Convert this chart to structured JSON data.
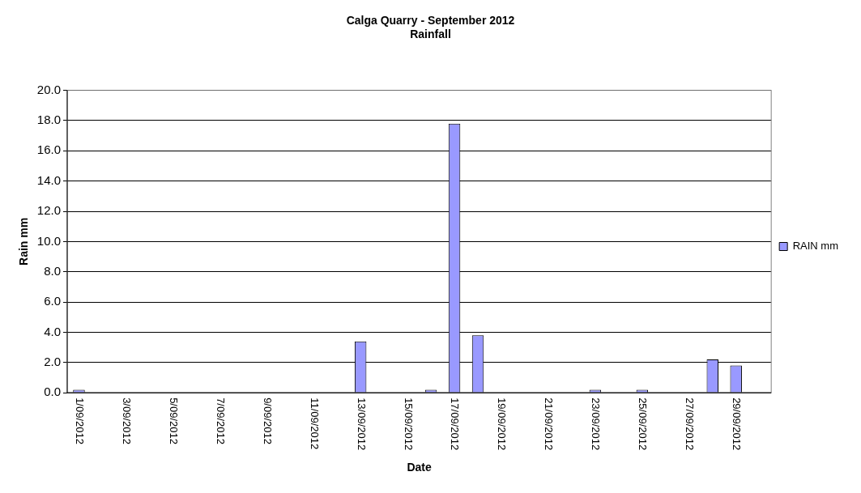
{
  "chart_data": {
    "type": "bar",
    "title": "Calga Quarry - September 2012",
    "subtitle": "Rainfall",
    "xlabel": "Date",
    "ylabel": "Rain mm",
    "categories": [
      "1/09/2012",
      null,
      "3/09/2012",
      null,
      "5/09/2012",
      null,
      "7/09/2012",
      null,
      "9/09/2012",
      null,
      "11/09/2012",
      null,
      "13/09/2012",
      null,
      "15/09/2012",
      null,
      "17/09/2012",
      null,
      "19/09/2012",
      null,
      "21/09/2012",
      null,
      "23/09/2012",
      null,
      "25/09/2012",
      null,
      "27/09/2012",
      null,
      "29/09/2012",
      null
    ],
    "series": [
      {
        "name": "RAIN mm",
        "color": "#9999ff",
        "values": [
          0.2,
          0,
          0,
          0,
          0,
          0,
          0,
          0,
          0,
          0,
          0,
          0,
          3.4,
          0,
          0,
          0.2,
          17.8,
          3.8,
          0,
          0,
          0,
          0,
          0.2,
          0,
          0.2,
          0,
          0,
          2.2,
          1.8,
          0
        ]
      }
    ],
    "ylim": [
      0,
      20
    ],
    "yticks": [
      {
        "value": 0,
        "label": "0.0"
      },
      {
        "value": 2,
        "label": "2.0"
      },
      {
        "value": 4,
        "label": "4.0"
      },
      {
        "value": 6,
        "label": "6.0"
      },
      {
        "value": 8,
        "label": "8.0"
      },
      {
        "value": 10,
        "label": "10.0"
      },
      {
        "value": 12,
        "label": "12.0"
      },
      {
        "value": 14,
        "label": "14.0"
      },
      {
        "value": 16,
        "label": "16.0"
      },
      {
        "value": 18,
        "label": "18.0"
      },
      {
        "value": 20,
        "label": "20.0"
      }
    ],
    "grid": "y",
    "legend": "right"
  }
}
